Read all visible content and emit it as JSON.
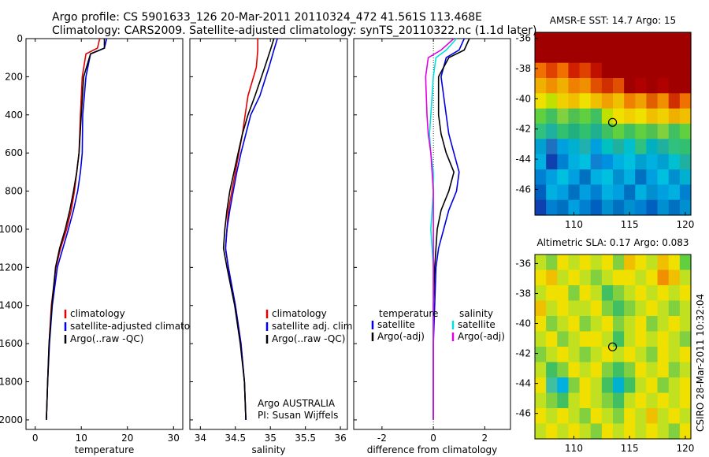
{
  "header": {
    "title_line1": "Argo profile: CS 5901633_126 20-Mar-2011 20110324_472 41.561S 113.468E",
    "title_line2": "Climatology: CARS2009. Satellite-adjusted climatology: synTS_20110322.nc (1.1d later)"
  },
  "side_stamp": "CSIRO 28-Mar-2011 10:32:04",
  "chart_data": [
    {
      "id": "temp",
      "type": "line",
      "title": "",
      "xlabel": "temperature",
      "ylabel": "",
      "xlim": [
        -2,
        32
      ],
      "ylim": [
        2050,
        0
      ],
      "x_ticks": [
        0,
        10,
        20,
        30
      ],
      "y_ticks": [
        0,
        200,
        400,
        600,
        800,
        1000,
        1200,
        1400,
        1600,
        1800,
        2000
      ],
      "legend": [
        "climatology",
        "satellite-adjusted climatology",
        "Argo(..raw -QC)"
      ],
      "annotations": [],
      "series": [
        {
          "name": "climatology",
          "color": "#e00000",
          "x": [
            14,
            13.5,
            11,
            10.2,
            9.8,
            9.5,
            9.0,
            8.5,
            7.8,
            6.8,
            5.5,
            4.5,
            3.5,
            3.0,
            2.7,
            2.5,
            2.4
          ],
          "y": [
            0,
            50,
            80,
            200,
            400,
            600,
            700,
            800,
            900,
            1000,
            1100,
            1200,
            1400,
            1600,
            1800,
            1950,
            2000
          ]
        },
        {
          "name": "satellite-adjusted climatology",
          "color": "#0000e0",
          "x": [
            15.5,
            15,
            12,
            11,
            10.3,
            10.2,
            9.8,
            9.2,
            8.3,
            7.2,
            6.0,
            4.8,
            3.7,
            3.1,
            2.7,
            2.5,
            2.4
          ],
          "y": [
            0,
            50,
            80,
            200,
            400,
            600,
            700,
            800,
            900,
            1000,
            1100,
            1200,
            1400,
            1600,
            1800,
            1950,
            2000
          ]
        },
        {
          "name": "Argo(..raw -QC)",
          "color": "#000000",
          "x": [
            15,
            15,
            12,
            10.5,
            10,
            9.5,
            9.0,
            8.3,
            7.5,
            6.5,
            5.3,
            4.4,
            3.6,
            3.0,
            2.7,
            2.5,
            2.4
          ],
          "y": [
            0,
            50,
            80,
            200,
            400,
            600,
            700,
            800,
            900,
            1000,
            1100,
            1200,
            1400,
            1600,
            1800,
            1950,
            2000
          ]
        }
      ]
    },
    {
      "id": "sal",
      "type": "line",
      "title": "",
      "xlabel": "salinity",
      "ylabel": "",
      "xlim": [
        33.85,
        36.1
      ],
      "ylim": [
        2050,
        0
      ],
      "x_ticks": [
        34,
        34.5,
        35,
        35.5,
        36
      ],
      "y_ticks": [],
      "legend": [
        "climatology",
        "satellite adj. clim.",
        "Argo(..raw -QC)"
      ],
      "annotations": [
        "Argo AUSTRALIA",
        "PI: Susan Wijffels"
      ],
      "series": [
        {
          "name": "climatology",
          "color": "#e00000",
          "x": [
            34.82,
            34.82,
            34.8,
            34.68,
            34.64,
            34.6,
            34.55,
            34.5,
            34.45,
            34.4,
            34.38,
            34.36,
            34.4,
            34.5,
            34.58,
            34.63,
            34.65
          ],
          "y": [
            0,
            60,
            150,
            300,
            400,
            500,
            600,
            700,
            800,
            900,
            1000,
            1100,
            1200,
            1400,
            1600,
            1800,
            2000
          ]
        },
        {
          "name": "satellite adj. clim.",
          "color": "#0000e0",
          "x": [
            35.1,
            35.05,
            34.98,
            34.85,
            34.72,
            34.65,
            34.58,
            34.52,
            34.47,
            34.42,
            34.38,
            34.36,
            34.4,
            34.5,
            34.58,
            34.63,
            34.65
          ],
          "y": [
            0,
            60,
            150,
            300,
            400,
            500,
            600,
            700,
            800,
            900,
            1000,
            1100,
            1200,
            1400,
            1600,
            1800,
            2000
          ]
        },
        {
          "name": "Argo(..raw -QC)",
          "color": "#000000",
          "x": [
            35.05,
            35.0,
            34.92,
            34.78,
            34.68,
            34.6,
            34.54,
            34.48,
            34.42,
            34.38,
            34.35,
            34.33,
            34.38,
            34.49,
            34.57,
            34.63,
            34.65
          ],
          "y": [
            0,
            60,
            150,
            300,
            400,
            500,
            600,
            700,
            800,
            900,
            1000,
            1100,
            1200,
            1400,
            1600,
            1800,
            2000
          ]
        }
      ]
    },
    {
      "id": "diff",
      "type": "line",
      "title": "",
      "xlabel": "difference from climatology",
      "ylabel": "",
      "xlim": [
        -3.1,
        3
      ],
      "ylim": [
        2050,
        0
      ],
      "x_ticks": [
        -2,
        0,
        2
      ],
      "y_ticks": [],
      "legend_temperature_header": "temperature",
      "legend_salinity_header": "salinity",
      "legend": [
        "satellite",
        "Argo(-adj)",
        "satellite",
        "Argo(-adj)"
      ],
      "annotations": [],
      "series": [
        {
          "name": "temperature satellite",
          "color": "#0000e0",
          "x": [
            1.2,
            1.0,
            0.5,
            0.3,
            0.5,
            0.6,
            0.8,
            1.0,
            0.9,
            0.6,
            0.4,
            0.2,
            0.1,
            0.05,
            0.0,
            0.0
          ],
          "y": [
            0,
            60,
            100,
            200,
            400,
            500,
            600,
            700,
            800,
            900,
            1000,
            1100,
            1200,
            1400,
            1600,
            2000
          ]
        },
        {
          "name": "temperature Argo(-adj)",
          "color": "#000000",
          "x": [
            1.4,
            1.2,
            0.6,
            0.2,
            0.2,
            0.3,
            0.5,
            0.8,
            0.6,
            0.3,
            0.15,
            0.1,
            0.05,
            0.0,
            0.0,
            0.0
          ],
          "y": [
            0,
            60,
            100,
            200,
            400,
            500,
            600,
            700,
            800,
            900,
            1000,
            1100,
            1200,
            1400,
            1600,
            2000
          ]
        },
        {
          "name": "salinity satellite",
          "color": "#00e0e0",
          "x": [
            0.9,
            0.5,
            0.1,
            0.0,
            -0.1,
            -0.15,
            -0.1,
            0.0,
            0.0,
            -0.05,
            -0.1,
            -0.05,
            0.0,
            0.0,
            0.0,
            0.0
          ],
          "y": [
            0,
            60,
            100,
            200,
            400,
            500,
            600,
            700,
            800,
            900,
            1000,
            1100,
            1200,
            1400,
            1600,
            2000
          ]
        },
        {
          "name": "salinity Argo(-adj)",
          "color": "#e000e0",
          "x": [
            0.8,
            0.3,
            -0.2,
            -0.3,
            -0.25,
            -0.2,
            -0.1,
            -0.05,
            0.0,
            0.0,
            0.0,
            0.0,
            0.0,
            0.0,
            0.0,
            0.0
          ],
          "y": [
            0,
            60,
            100,
            200,
            400,
            500,
            600,
            700,
            800,
            900,
            1000,
            1100,
            1200,
            1400,
            1600,
            2000
          ]
        }
      ]
    },
    {
      "id": "sst",
      "type": "heatmap",
      "title": "AMSR-E SST: 14.7 Argo: 15",
      "xlabel": "",
      "ylabel": "",
      "xlim": [
        106.5,
        120.5
      ],
      "ylim": [
        -47.7,
        -35.6
      ],
      "x_ticks": [
        110,
        115,
        120
      ],
      "y_ticks": [
        -36,
        -38,
        -40,
        -42,
        -44,
        -46
      ],
      "marker": {
        "lon": 113.468,
        "lat": -41.561
      },
      "rows_top_to_bottom": [
        "#a00000 #a00000 #a00000 #a00000 #a00000 #a00000 #a00000 #a00000 #a00000 #a00000 #a00000 #a00000 #a00000 #a00000",
        "#a00000 #a00000 #a00000 #a00000 #a00000 #a00000 #a00000 #a00000 #a00000 #a00000 #a00000 #a00000 #a00000 #a00000",
        "#f07000 #e04000 #f07000 #d02000 #e04000 #c01000 #a00000 #a00000 #a00000 #a00000 #a00000 #a00000 #a00000 #a00000",
        "#f0b000 #f09000 #f0b000 #f08000 #f09000 #e05000 #d03000 #e05000 #a00000 #b00000 #a00000 #b00000 #a00000 #a00000",
        "#f0e000 #c0e000 #f0d000 #f0c000 #f0e000 #f0c000 #f0a000 #f0c000 #f08000 #f0a000 #e06000 #f09000 #d03000 #f07000",
        "#60d040 #40c060 #80d040 #50c050 #60d040 #40c060 #c0e000 #f0e000 #f0d000 #f0e000 #f0c000 #f0d000 #f0b000 #f0c000",
        "#30c080 #20b0a0 #30c070 #20b080 #30c070 #20b090 #40c060 #60d040 #40c060 #60d040 #50c050 #80d040 #40c060 #60d040",
        "#00a0d0 #2070c0 #00a0e0 #00b0d0 #20b0b0 #00a0e0 #00c0c0 #20b0a0 #00c0d0 #30c080 #00b0c0 #20b0a0 #30c080 #30c070",
        "#00b0e0 #1040b0 #0080d0 #00b0e0 #00c0e0 #1080d0 #0090e0 #00b0e0 #00c0e0 #00a0d0 #00b0e0 #00a0d0 #00c0d0 #20b0a0",
        "#0080d0 #00a0e0 #00c0e0 #00a0e0 #0070c0 #00b0e0 #00c0e0 #0090d0 #00b0e0 #0070c0 #00a0e0 #00c0e0 #0090d0 #00b0d0",
        "#0060c0 #00b0e0 #00a0e0 #0070c0 #00a0e0 #0080d0 #00b0e0 #00a0e0 #0070c0 #00b0e0 #0090d0 #00a0e0 #00b0e0 #0080d0",
        "#1040b0 #0080d0 #0070c0 #00a0e0 #0080d0 #0060c0 #0090d0 #0070c0 #0090d0 #0080d0 #0060c0 #0090d0 #0070c0 #0090d0"
      ]
    },
    {
      "id": "sla",
      "type": "heatmap",
      "title": "Altimetric SLA: 0.17 Argo: 0.083",
      "xlabel": "",
      "ylabel": "",
      "xlim": [
        106.5,
        120.5
      ],
      "ylim": [
        -47.7,
        -35.4
      ],
      "x_ticks": [
        110,
        115,
        120
      ],
      "y_ticks": [
        -36,
        -38,
        -40,
        -42,
        -44,
        -46
      ],
      "marker": {
        "lon": 113.468,
        "lat": -41.561
      },
      "rows_top_to_bottom": [
        "#c0e020 #80d040 #f0e000 #c0e020 #f0e000 #c0e020 #f0e000 #80d040 #f0c000 #f0e000 #c0e020 #f0c000 #f0e000 #60d040",
        "#f0e000 #f0c000 #c0e020 #f0e000 #c0e020 #80d040 #c0e020 #f0e000 #f0e000 #c0e020 #f0e000 #f09000 #f0c000 #c0e020",
        "#c0e020 #f0e000 #f0e000 #80d040 #f0e000 #c0e020 #40c060 #80d040 #c0e020 #f0e000 #c0e020 #f0e000 #c0e020 #f0e000",
        "#f0c000 #c0e020 #f0e000 #c0e020 #c0e020 #f0e000 #80d040 #40c060 #80d040 #c0e020 #f0e000 #c0e020 #80d040 #c0e020",
        "#f0e000 #80d040 #c0e020 #f0e000 #80d040 #c0e020 #f0e000 #80d040 #c0e020 #f0e000 #80d040 #c0e020 #f0e000 #c0e020",
        "#c0e020 #f0e000 #80d040 #c0e020 #f0e000 #f0e000 #c0e020 #40c060 #c0e020 #f0e000 #c0e020 #f0e000 #c0e020 #80d040",
        "#80d040 #c0e020 #f0e000 #c0e020 #80d040 #c0e020 #f0e000 #c0e020 #f0e000 #c0e020 #80d040 #f0e000 #c0e020 #f0e000",
        "#c0e020 #40c060 #80d040 #f0e000 #c0e020 #f0e000 #80d040 #40c060 #80d040 #f0e000 #c0e020 #f0e000 #80d040 #c0e020",
        "#f0e000 #40c0a0 #00b0e0 #80d040 #f0e000 #c0e020 #40c060 #00b0d0 #40c060 #c0e020 #f0e000 #80d040 #c0e020 #f0e000",
        "#c0e020 #80d040 #40c060 #c0e020 #f0e000 #c0e020 #80d040 #40c060 #c0e020 #f0e000 #c0e020 #f0e000 #c0e020 #f0e000",
        "#f0e000 #c0e020 #f0e000 #c0e020 #80d040 #f0e000 #c0e020 #80d040 #f0e000 #c0e020 #f0c000 #c0e020 #f0e000 #c0e020",
        "#c0e020 #f0e000 #c0e020 #f0e000 #c0e020 #80d040 #f0e000 #c0e020 #f0e000 #c0e020 #f0e000 #c0e020 #80d040 #f0e000"
      ]
    }
  ]
}
